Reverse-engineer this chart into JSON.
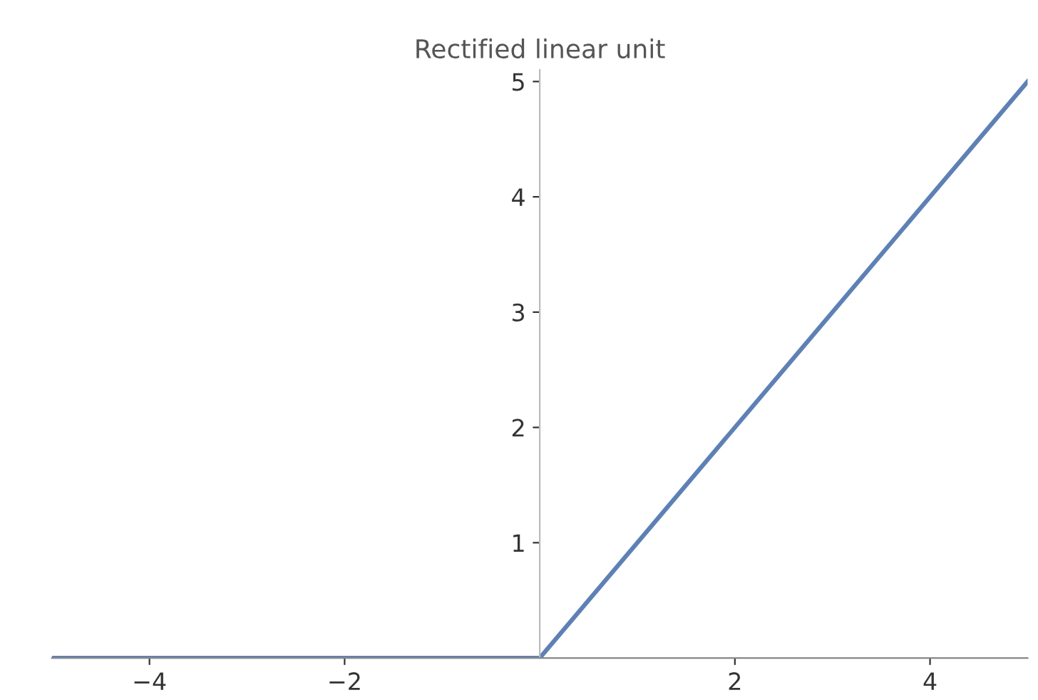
{
  "chart_data": {
    "type": "line",
    "title": "Rectified linear unit",
    "x": [
      -5,
      0,
      5
    ],
    "series": [
      {
        "color": "#5e81b5",
        "values": [
          0,
          0,
          5
        ]
      }
    ],
    "xlim": [
      -5,
      5
    ],
    "ylim": [
      0,
      5.1
    ],
    "xticks": [
      -4,
      -2,
      2,
      4
    ],
    "yticks": [
      1,
      2,
      3,
      4,
      5
    ],
    "grid": false,
    "legend": false
  }
}
